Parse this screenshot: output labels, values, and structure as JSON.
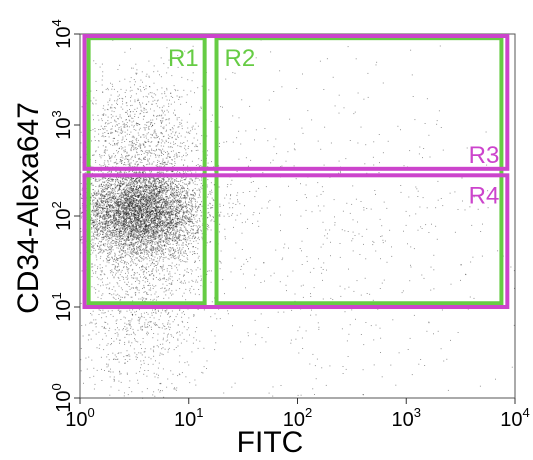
{
  "chart_data": {
    "type": "scatter",
    "xlabel": "FITC",
    "ylabel": "CD34-Alexa647",
    "xscale": "log",
    "yscale": "log",
    "xlim": [
      1,
      10000
    ],
    "ylim": [
      1,
      10000
    ],
    "x_ticks": [
      {
        "value": 1,
        "base": "10",
        "exp": "0"
      },
      {
        "value": 10,
        "base": "10",
        "exp": "1"
      },
      {
        "value": 100,
        "base": "10",
        "exp": "2"
      },
      {
        "value": 1000,
        "base": "10",
        "exp": "3"
      },
      {
        "value": 10000,
        "base": "10",
        "exp": "4"
      }
    ],
    "y_ticks": [
      {
        "value": 1,
        "base": "10",
        "exp": "0"
      },
      {
        "value": 10,
        "base": "10",
        "exp": "1"
      },
      {
        "value": 100,
        "base": "10",
        "exp": "2"
      },
      {
        "value": 1000,
        "base": "10",
        "exp": "3"
      },
      {
        "value": 10000,
        "base": "10",
        "exp": "4"
      }
    ],
    "grid": false,
    "point_color": "#1a1a1a",
    "populations": [
      {
        "x_log_center": 0.55,
        "y_log_center": 2.05,
        "x_log_sd": 0.28,
        "y_log_sd": 0.26,
        "count": 6500
      },
      {
        "x_log_center": 0.55,
        "y_log_center": 2.9,
        "x_log_sd": 0.3,
        "y_log_sd": 0.35,
        "count": 1000
      },
      {
        "x_log_center": 0.55,
        "y_log_center": 1.0,
        "x_log_sd": 0.3,
        "y_log_sd": 0.55,
        "count": 1100
      },
      {
        "x_log_center": 2.0,
        "y_log_center": 2.3,
        "x_log_sd": 0.9,
        "y_log_sd": 0.8,
        "count": 450
      },
      {
        "x_log_center": 2.5,
        "y_log_center": 0.9,
        "x_log_sd": 1.0,
        "y_log_sd": 0.7,
        "count": 250
      }
    ],
    "gates": [
      {
        "name": "R1",
        "color": "#66cc44",
        "x": [
          1.2,
          14
        ],
        "y": [
          11,
          9000
        ],
        "label_at": "top-right-inside"
      },
      {
        "name": "R2",
        "color": "#66cc44",
        "x": [
          18,
          7500
        ],
        "y": [
          11,
          9000
        ],
        "label_at": "top-left-inside"
      },
      {
        "name": "R3",
        "color": "#cc44cc",
        "x": [
          1.1,
          8500
        ],
        "y": [
          330,
          9500
        ],
        "label_at": "bottom-right-above"
      },
      {
        "name": "R4",
        "color": "#cc44cc",
        "x": [
          1.1,
          8500
        ],
        "y": [
          10,
          280
        ],
        "label_at": "top-right-below"
      }
    ]
  }
}
